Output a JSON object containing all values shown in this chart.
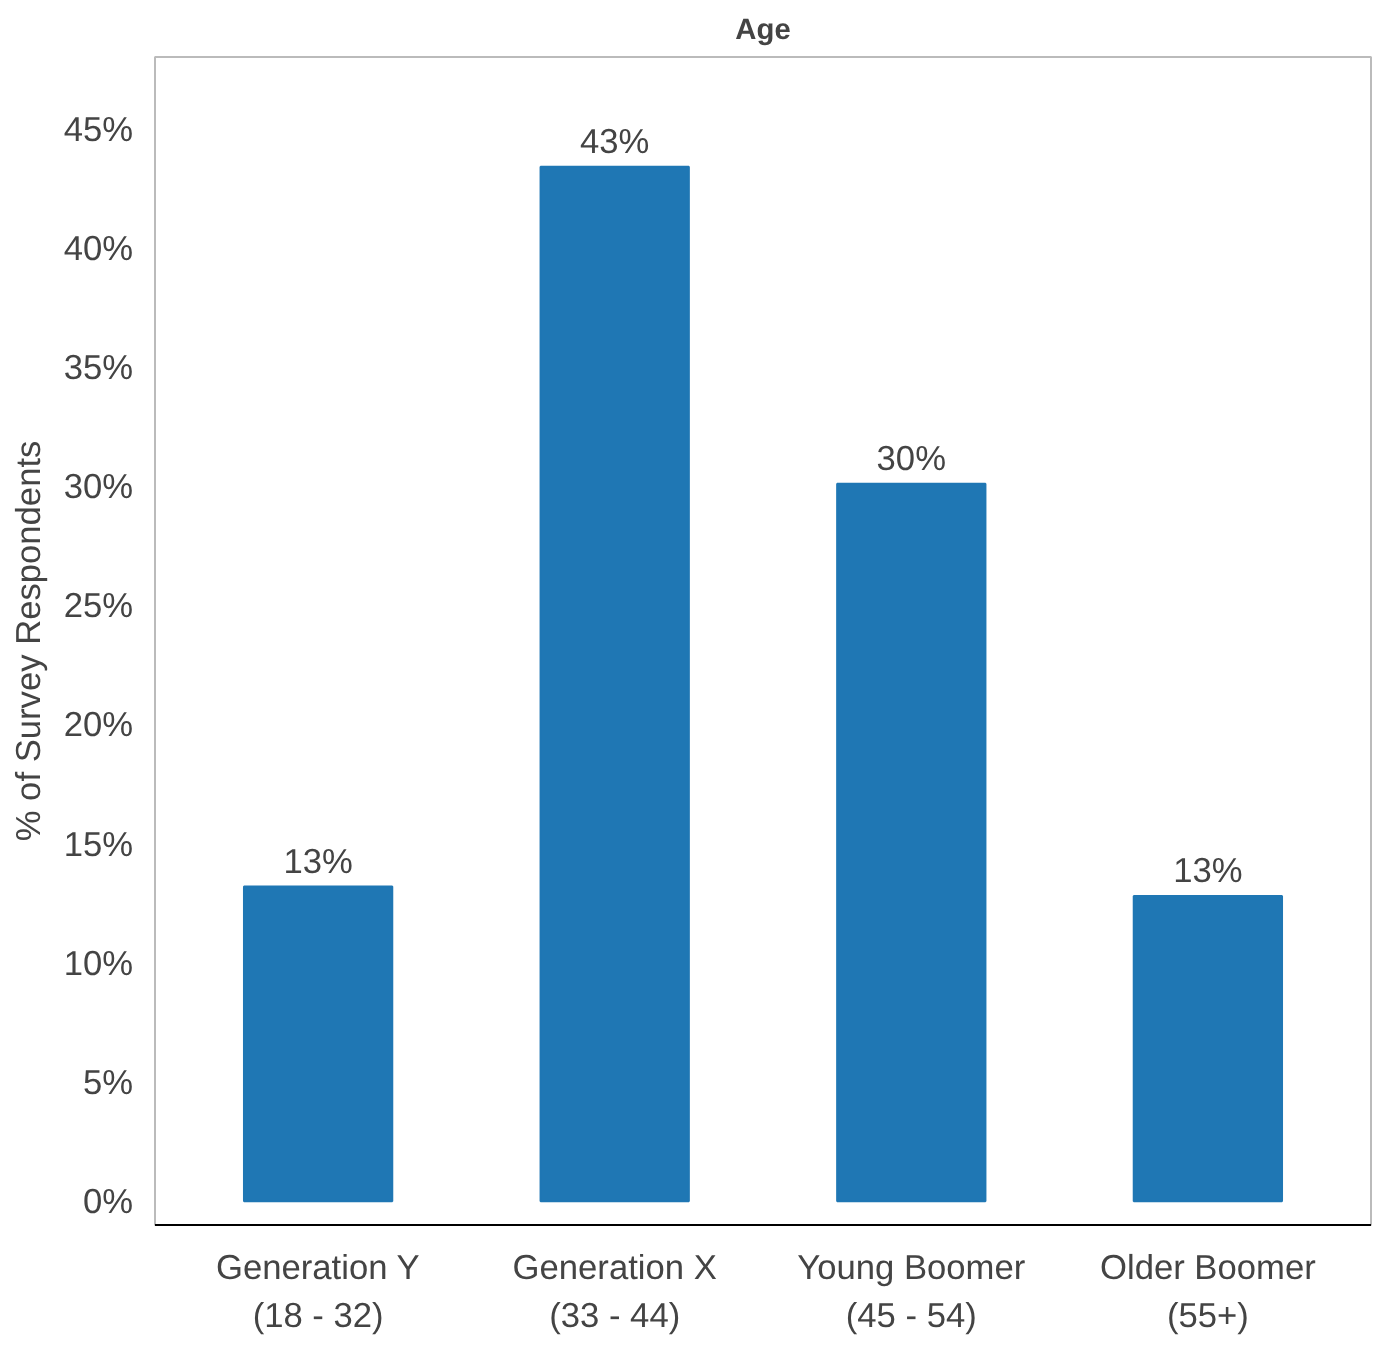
{
  "chart_data": {
    "type": "bar",
    "title": "Age",
    "ylabel": "% of Survey Respondents",
    "categories": [
      "Generation Y\n(18 - 32)",
      "Generation X\n(33 - 44)",
      "Young Boomer\n(45 - 54)",
      "Older Boomer\n(55+)"
    ],
    "values": [
      13.2,
      43.4,
      30.1,
      12.8
    ],
    "value_labels": [
      "13%",
      "43%",
      "30%",
      "13%"
    ],
    "color": "#1f77b4",
    "ylim": [
      -1,
      48
    ],
    "yticks": [
      {
        "value": 0,
        "label": "0%"
      },
      {
        "value": 5,
        "label": "5%"
      },
      {
        "value": 10,
        "label": "10%"
      },
      {
        "value": 15,
        "label": "15%"
      },
      {
        "value": 20,
        "label": "20%"
      },
      {
        "value": 25,
        "label": "25%"
      },
      {
        "value": 30,
        "label": "30%"
      },
      {
        "value": 35,
        "label": "35%"
      },
      {
        "value": 40,
        "label": "40%"
      },
      {
        "value": 45,
        "label": "45%"
      }
    ],
    "grid": false
  }
}
